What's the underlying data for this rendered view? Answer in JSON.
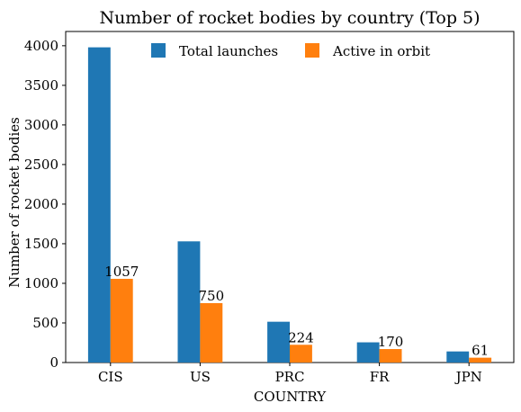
{
  "chart_data": {
    "type": "bar",
    "title": "Number of rocket bodies by country (Top 5)",
    "xlabel": "COUNTRY",
    "ylabel": "Number of rocket bodies",
    "categories": [
      "CIS",
      "US",
      "PRC",
      "FR",
      "JPN"
    ],
    "series": [
      {
        "name": "Total launches",
        "color": "#1f77b4",
        "values": [
          3980,
          1530,
          515,
          255,
          140
        ]
      },
      {
        "name": "Active in orbit",
        "color": "#ff7f0e",
        "values": [
          1057,
          750,
          224,
          170,
          61
        ],
        "data_labels": [
          "1057",
          "750",
          "224",
          "170",
          "61"
        ]
      }
    ],
    "ylim": [
      0,
      4180
    ],
    "yticks": [
      0,
      500,
      1000,
      1500,
      2000,
      2500,
      3000,
      3500,
      4000
    ],
    "grid": false,
    "legend": "top-center"
  }
}
